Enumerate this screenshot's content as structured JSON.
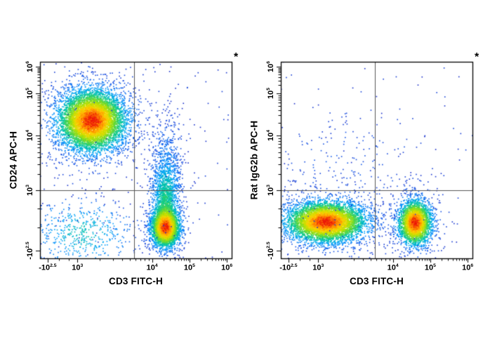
{
  "figure": {
    "background": "#ffffff",
    "frame_color": "#000000",
    "gate_color": "#555555",
    "tick_color": "#000000",
    "text_color": "#000000",
    "corner_annotation": "*",
    "colormap": [
      {
        "t": 0.0,
        "c": [
          24,
          44,
          200
        ]
      },
      {
        "t": 0.18,
        "c": [
          20,
          90,
          235
        ]
      },
      {
        "t": 0.35,
        "c": [
          0,
          160,
          255
        ]
      },
      {
        "t": 0.5,
        "c": [
          0,
          200,
          160
        ]
      },
      {
        "t": 0.62,
        "c": [
          90,
          215,
          60
        ]
      },
      {
        "t": 0.74,
        "c": [
          190,
          225,
          0
        ]
      },
      {
        "t": 0.84,
        "c": [
          255,
          210,
          0
        ]
      },
      {
        "t": 0.93,
        "c": [
          255,
          130,
          0
        ]
      },
      {
        "t": 1.0,
        "c": [
          235,
          20,
          10
        ]
      }
    ]
  },
  "chart_data": [
    {
      "type": "scatter",
      "panel": "left",
      "xlabel": "CD3 FITC-H",
      "ylabel": "CD24 APC-H",
      "corner_annotation": "*",
      "axis_scale": "biexponential",
      "x_ticks": [
        {
          "base": "-10",
          "exp": "2.5",
          "frac": 0.04
        },
        {
          "base": "10",
          "exp": "3",
          "frac": 0.195
        },
        {
          "base": "10",
          "exp": "4",
          "frac": 0.585
        },
        {
          "base": "10",
          "exp": "5",
          "frac": 0.78
        },
        {
          "base": "10",
          "exp": "6",
          "frac": 0.975
        }
      ],
      "y_ticks": [
        {
          "base": "-10",
          "exp": "2.5",
          "frac": 0.04
        },
        {
          "base": "10",
          "exp": "3",
          "frac": 0.345
        },
        {
          "base": "10",
          "exp": "4",
          "frac": 0.625
        },
        {
          "base": "10",
          "exp": "5",
          "frac": 0.84
        },
        {
          "base": "10",
          "exp": "6",
          "frac": 0.975
        }
      ],
      "quadrant_gate": {
        "x_frac": 0.49,
        "y_frac": 0.345
      },
      "populations": [
        {
          "name": "CD24-positive CD3-negative cells",
          "intensity": 1,
          "components": [
            {
              "cx": 0.27,
              "cy": 0.7,
              "sx": 0.085,
              "sy": 0.075,
              "n": 6500
            },
            {
              "cx": 0.27,
              "cy": 0.7,
              "sx": 0.17,
              "sy": 0.15,
              "n": 700
            }
          ]
        },
        {
          "name": "CD3-positive T cells",
          "intensity": 1,
          "components": [
            {
              "cx": 0.655,
              "cy": 0.155,
              "sx": 0.038,
              "sy": 0.05,
              "n": 3200
            },
            {
              "cx": 0.655,
              "cy": 0.3,
              "sx": 0.036,
              "sy": 0.1,
              "n": 1500
            },
            {
              "cx": 0.66,
              "cy": 0.5,
              "sx": 0.045,
              "sy": 0.13,
              "n": 420
            }
          ]
        },
        {
          "name": "double-negative events",
          "intensity": 0.45,
          "components": [
            {
              "cx": 0.22,
              "cy": 0.13,
              "sx": 0.14,
              "sy": 0.09,
              "n": 550
            }
          ]
        },
        {
          "name": "background events",
          "type": "uniform",
          "intensity": 0.05,
          "n": 150
        }
      ]
    },
    {
      "type": "scatter",
      "panel": "right",
      "xlabel": "CD3 FITC-H",
      "ylabel": "Rat IgG2b APC-H",
      "corner_annotation": "*",
      "axis_scale": "biexponential",
      "x_ticks": [
        {
          "base": "-10",
          "exp": "2.5",
          "frac": 0.04
        },
        {
          "base": "10",
          "exp": "3",
          "frac": 0.195
        },
        {
          "base": "10",
          "exp": "4",
          "frac": 0.585
        },
        {
          "base": "10",
          "exp": "5",
          "frac": 0.78
        },
        {
          "base": "10",
          "exp": "6",
          "frac": 0.975
        }
      ],
      "y_ticks": [
        {
          "base": "-10",
          "exp": "2.5",
          "frac": 0.04
        },
        {
          "base": "10",
          "exp": "3",
          "frac": 0.345
        },
        {
          "base": "10",
          "exp": "4",
          "frac": 0.625
        },
        {
          "base": "10",
          "exp": "5",
          "frac": 0.84
        },
        {
          "base": "10",
          "exp": "6",
          "frac": 0.975
        }
      ],
      "quadrant_gate": {
        "x_frac": 0.49,
        "y_frac": 0.345
      },
      "populations": [
        {
          "name": "CD3-negative cells isotype control",
          "intensity": 1,
          "components": [
            {
              "cx": 0.235,
              "cy": 0.185,
              "sx": 0.1,
              "sy": 0.05,
              "n": 5500
            },
            {
              "cx": 0.235,
              "cy": 0.19,
              "sx": 0.19,
              "sy": 0.1,
              "n": 600
            }
          ]
        },
        {
          "name": "CD3-positive cells isotype control",
          "intensity": 1,
          "components": [
            {
              "cx": 0.7,
              "cy": 0.18,
              "sx": 0.042,
              "sy": 0.055,
              "n": 2800
            },
            {
              "cx": 0.7,
              "cy": 0.2,
              "sx": 0.075,
              "sy": 0.1,
              "n": 280
            }
          ]
        },
        {
          "name": "sparse events above populations",
          "intensity": 0.15,
          "components": [
            {
              "cx": 0.35,
              "cy": 0.45,
              "sx": 0.25,
              "sy": 0.17,
              "n": 200
            }
          ]
        },
        {
          "name": "background events",
          "type": "uniform",
          "intensity": 0.05,
          "n": 80
        }
      ]
    }
  ]
}
